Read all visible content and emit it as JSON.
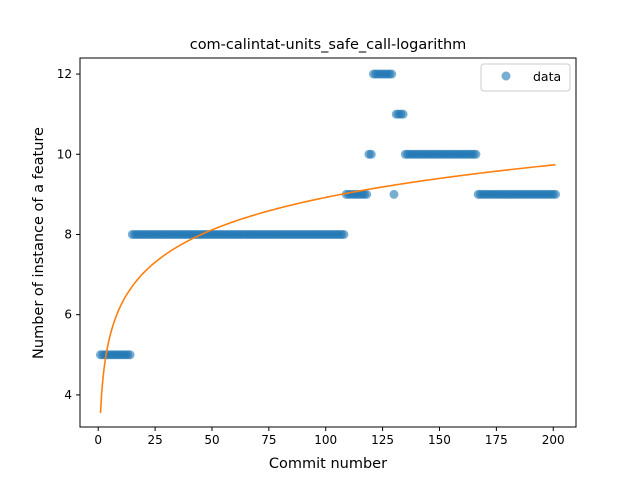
{
  "chart_data": {
    "type": "scatter",
    "title": "com-calintat-units_safe_call-logarithm",
    "xlabel": "Commit number",
    "ylabel": "Number of instance of a feature",
    "xlim": [
      -8,
      210
    ],
    "ylim": [
      3.2,
      12.4
    ],
    "xticks": [
      0,
      25,
      50,
      75,
      100,
      125,
      150,
      175,
      200
    ],
    "yticks": [
      4,
      6,
      8,
      10,
      12
    ],
    "grid": false,
    "legend": {
      "placement": "top-right",
      "entries": [
        "data"
      ]
    },
    "colors": {
      "points": "#1f77b4",
      "fit": "#ff7f0e"
    },
    "series": [
      {
        "name": "data",
        "kind": "scatter",
        "segments": [
          {
            "x_start": 1,
            "x_end": 14,
            "y": 5
          },
          {
            "x_start": 15,
            "x_end": 108,
            "y": 8
          },
          {
            "x_start": 109,
            "x_end": 118,
            "y": 9
          },
          {
            "x_start": 119,
            "x_end": 120,
            "y": 10
          },
          {
            "x_start": 121,
            "x_end": 128,
            "y": 12
          },
          {
            "x_start": 129,
            "x_end": 129,
            "y": 12
          },
          {
            "x_start": 130,
            "x_end": 130,
            "y": 9
          },
          {
            "x_start": 131,
            "x_end": 134,
            "y": 11
          },
          {
            "x_start": 135,
            "x_end": 166,
            "y": 10
          },
          {
            "x_start": 167,
            "x_end": 201,
            "y": 9
          }
        ]
      },
      {
        "kind": "line",
        "fit": {
          "model": "logarithmic",
          "a": 3.55,
          "b": 1.167
        },
        "x_range": [
          1,
          201
        ]
      }
    ]
  }
}
